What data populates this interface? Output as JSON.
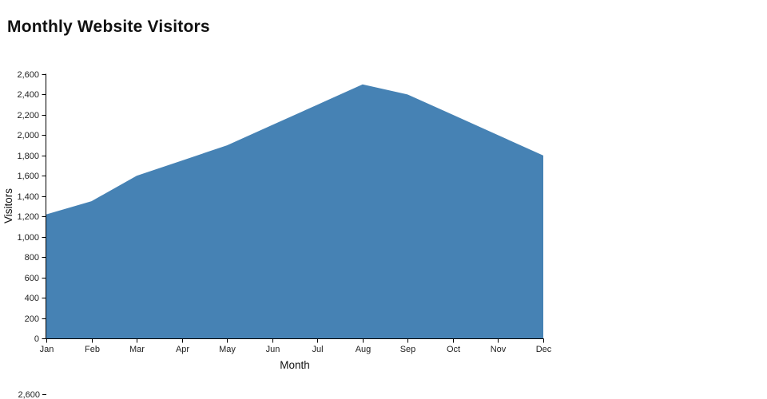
{
  "chart_data": {
    "type": "area",
    "title": "Monthly Website Visitors",
    "xlabel": "Month",
    "ylabel": "Visitors",
    "categories": [
      "Jan",
      "Feb",
      "Mar",
      "Apr",
      "May",
      "Jun",
      "Jul",
      "Aug",
      "Sep",
      "Oct",
      "Nov",
      "Dec"
    ],
    "values": [
      1220,
      1350,
      1600,
      1750,
      1900,
      2100,
      2300,
      2500,
      2400,
      2200,
      2000,
      1800
    ],
    "ylim": [
      0,
      2600
    ],
    "ytick_step": 200,
    "ytick_labels": [
      "0",
      "200",
      "400",
      "600",
      "800",
      "1,000",
      "1,200",
      "1,400",
      "1,600",
      "1,800",
      "2,000",
      "2,200",
      "2,400",
      "2,600"
    ],
    "fill_color": "#4682b4",
    "grid": false,
    "legend": "none"
  },
  "partial_second_chart": {
    "first_visible_tick_label": "2,600"
  }
}
